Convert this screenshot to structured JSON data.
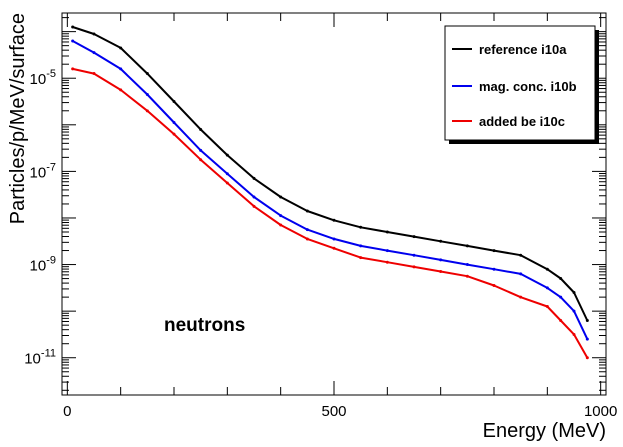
{
  "chart_data": {
    "type": "line",
    "title": "",
    "xlabel": "Energy (MeV)",
    "ylabel": "Particles/p/MeV/surface",
    "xlim": [
      -10,
      1010
    ],
    "ylim_log10": [
      -11.8,
      -3.6
    ],
    "yscale": "log",
    "grid": false,
    "legend_position": "top-right",
    "x_ticks": [
      {
        "value": 0,
        "label": "0"
      },
      {
        "value": 500,
        "label": "500"
      },
      {
        "value": 1000,
        "label": "1000"
      }
    ],
    "y_ticks": [
      {
        "log10": -5,
        "base": "10",
        "exp": "-5"
      },
      {
        "log10": -7,
        "base": "10",
        "exp": "-7"
      },
      {
        "log10": -9,
        "base": "10",
        "exp": "-9"
      },
      {
        "log10": -11,
        "base": "10",
        "exp": "-11"
      }
    ],
    "annotation": "neutrons",
    "x": [
      10,
      50,
      100,
      150,
      200,
      250,
      300,
      350,
      400,
      450,
      500,
      550,
      600,
      650,
      700,
      750,
      800,
      850,
      900,
      925,
      950,
      975
    ],
    "series": [
      {
        "name": "reference i10a",
        "color": "#000000",
        "log10_values": [
          -3.9,
          -4.05,
          -4.35,
          -4.9,
          -5.5,
          -6.1,
          -6.65,
          -7.15,
          -7.55,
          -7.85,
          -8.05,
          -8.2,
          -8.3,
          -8.4,
          -8.5,
          -8.6,
          -8.7,
          -8.8,
          -9.1,
          -9.3,
          -9.6,
          -10.2
        ]
      },
      {
        "name": "mag. conc. i10b",
        "color": "#0000ee",
        "log10_values": [
          -4.2,
          -4.45,
          -4.8,
          -5.35,
          -5.95,
          -6.55,
          -7.05,
          -7.55,
          -7.95,
          -8.25,
          -8.45,
          -8.6,
          -8.7,
          -8.8,
          -8.9,
          -9.0,
          -9.1,
          -9.2,
          -9.5,
          -9.7,
          -10.0,
          -10.6
        ]
      },
      {
        "name": "added be i10c",
        "color": "#ee0000",
        "log10_values": [
          -4.8,
          -4.9,
          -5.25,
          -5.7,
          -6.2,
          -6.75,
          -7.25,
          -7.75,
          -8.15,
          -8.45,
          -8.65,
          -8.85,
          -8.95,
          -9.05,
          -9.15,
          -9.25,
          -9.45,
          -9.7,
          -9.9,
          -10.2,
          -10.5,
          -11.0
        ]
      }
    ]
  }
}
